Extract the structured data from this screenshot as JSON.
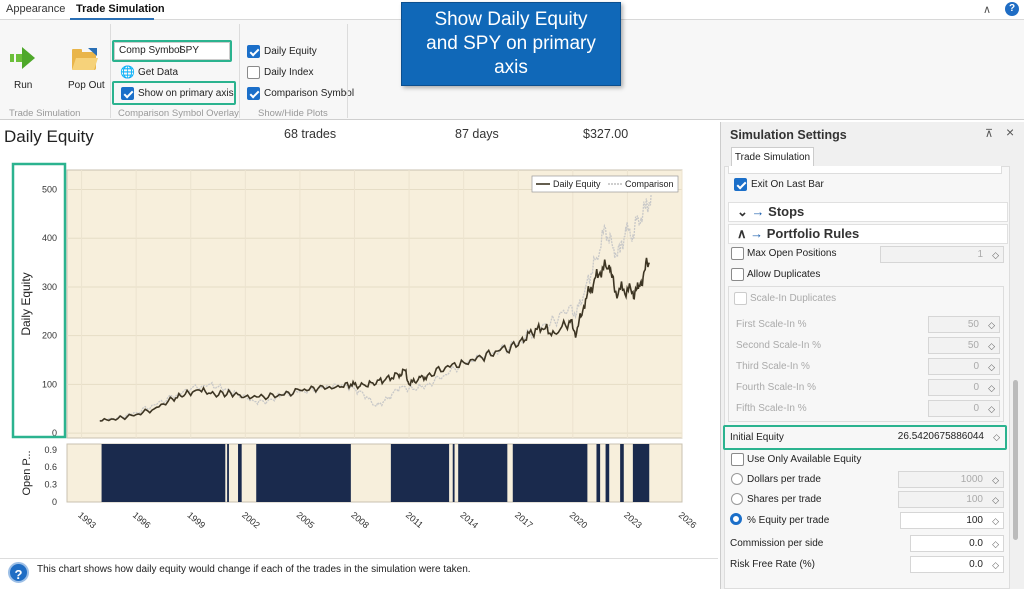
{
  "tabs": {
    "appearance": "Appearance",
    "trade_sim": "Trade Simulation"
  },
  "ribbon": {
    "run": "Run",
    "popout": "Pop Out",
    "group_trade_sim": "Trade Simulation",
    "comp_symbol_label": "Comp Symbol",
    "comp_symbol_value": "SPY",
    "get_data": "Get Data",
    "show_primary_axis": "Show on primary axis",
    "group_comparison": "Comparison Symbol Overlay",
    "plot_daily_equity": "Daily Equity",
    "plot_daily_index": "Daily Index",
    "plot_comparison": "Comparison Symbol",
    "group_show_hide": "Show/Hide Plots"
  },
  "callout": {
    "line1": "Show Daily Equity",
    "line2": "and SPY on primary",
    "line3": "axis"
  },
  "header": {
    "title": "Daily Equity",
    "trades": "68 trades",
    "days": "87 days",
    "amount": "$327.00"
  },
  "chart_data": {
    "type": "line",
    "ylabel": "Daily Equity",
    "ylim": [
      -10,
      540
    ],
    "yticks": [
      "0",
      "100",
      "200",
      "300",
      "400",
      "500"
    ],
    "xticks": [
      "1993",
      "1996",
      "1999",
      "2002",
      "2005",
      "2008",
      "2011",
      "2014",
      "2017",
      "2020",
      "2023",
      "2026"
    ],
    "legend": [
      "Daily Equity",
      "Comparison"
    ],
    "legend_position": "top-right",
    "series": [
      {
        "name": "Daily Equity",
        "color": "#3d3523",
        "x": [
          1994.0,
          1995.0,
          1996.0,
          1997.0,
          1998.0,
          1998.7,
          1999.5,
          2000.3,
          2001.2,
          2002.0,
          2003.0,
          2004.0,
          2005.0,
          2006.0,
          2007.0,
          2007.8,
          2008.3,
          2009.0,
          2009.7,
          2010.4,
          2010.8,
          2011.0,
          2011.5,
          2012.0,
          2013.0,
          2014.0,
          2015.0,
          2016.0,
          2017.0,
          2017.6,
          2018.3,
          2019.0,
          2019.8,
          2020.2,
          2020.6,
          2021.0,
          2021.5,
          2022.0,
          2022.3,
          2022.8,
          2023.3,
          2023.6,
          2023.9,
          2024.2
        ],
        "y": [
          25,
          30,
          38,
          50,
          70,
          80,
          88,
          80,
          82,
          75,
          75,
          78,
          88,
          92,
          95,
          100,
          96,
          103,
          110,
          120,
          128,
          100,
          110,
          118,
          135,
          145,
          155,
          170,
          180,
          205,
          215,
          205,
          230,
          205,
          260,
          300,
          330,
          345,
          290,
          295,
          290,
          296,
          330,
          350
        ]
      },
      {
        "name": "Comparison",
        "color": "#c8c8c8",
        "x": [
          1994.0,
          1995.0,
          1996.0,
          1997.0,
          1998.0,
          1999.0,
          2000.0,
          2000.7,
          2001.5,
          2002.5,
          2003.2,
          2004.0,
          2005.0,
          2006.0,
          2007.0,
          2007.8,
          2008.5,
          2009.2,
          2009.8,
          2010.5,
          2011.3,
          2012.0,
          2013.0,
          2014.0,
          2015.0,
          2016.0,
          2017.0,
          2018.0,
          2019.0,
          2019.8,
          2020.2,
          2020.7,
          2021.3,
          2021.8,
          2022.2,
          2022.6,
          2022.9,
          2023.2,
          2023.6,
          2024.0,
          2024.3
        ],
        "y": [
          25,
          32,
          42,
          58,
          75,
          90,
          100,
          92,
          82,
          65,
          65,
          78,
          85,
          90,
          100,
          95,
          80,
          55,
          70,
          95,
          90,
          100,
          120,
          145,
          155,
          170,
          185,
          215,
          230,
          260,
          245,
          300,
          360,
          420,
          380,
          370,
          420,
          400,
          440,
          460,
          490
        ]
      }
    ]
  },
  "subchart": {
    "ylabel": "Open P...",
    "yticks": [
      "0",
      "0.3",
      "0.6",
      "0.9"
    ],
    "segments": [
      [
        1994.1,
        2000.9
      ],
      [
        2001.0,
        2001.1
      ],
      [
        2001.6,
        2001.8
      ],
      [
        2002.6,
        2007.8
      ],
      [
        2010.0,
        2013.2
      ],
      [
        2013.4,
        2013.5
      ],
      [
        2013.7,
        2016.4
      ],
      [
        2016.7,
        2020.8
      ],
      [
        2021.3,
        2021.5
      ],
      [
        2021.8,
        2022.0
      ],
      [
        2022.6,
        2022.8
      ],
      [
        2023.3,
        2024.2
      ]
    ]
  },
  "info": {
    "text": "This chart shows how daily equity would change if each of the trades in the simulation were taken."
  },
  "panel": {
    "title": "Simulation Settings",
    "tab": "Trade Simulation",
    "exit_on_last_bar": "Exit On Last Bar",
    "stops": "Stops",
    "portfolio_rules": "Portfolio Rules",
    "max_open_positions": "Max Open Positions",
    "max_open_positions_val": "1",
    "allow_duplicates": "Allow Duplicates",
    "scale_in_duplicates": "Scale-In Duplicates",
    "first_scale": "First Scale-In %",
    "first_scale_val": "50",
    "second_scale": "Second Scale-In %",
    "second_scale_val": "50",
    "third_scale": "Third Scale-In %",
    "third_scale_val": "0",
    "fourth_scale": "Fourth Scale-In %",
    "fourth_scale_val": "0",
    "fifth_scale": "Fifth Scale-In %",
    "fifth_scale_val": "0",
    "initial_equity": "Initial Equity",
    "initial_equity_val": "26.5420675886044",
    "use_only_available": "Use Only Available Equity",
    "dollars_per_trade": "Dollars per trade",
    "dollars_per_trade_val": "1000",
    "shares_per_trade": "Shares per trade",
    "shares_per_trade_val": "100",
    "pct_equity_per_trade": "% Equity per trade",
    "pct_equity_per_trade_val": "100",
    "commission": "Commission per side",
    "commission_val": "0.0",
    "risk_free": "Risk Free Rate (%)",
    "risk_free_val": "0.0"
  },
  "colors": {
    "accent": "#1b6fc9",
    "highlight": "#2bb38f",
    "callout": "#1068b8",
    "plot_bg": "#f7efdc",
    "bars": "#1a2a4d"
  }
}
